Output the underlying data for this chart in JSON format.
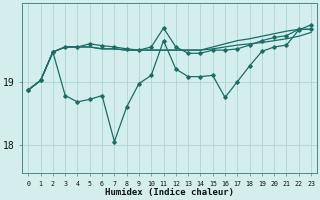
{
  "xlabel": "Humidex (Indice chaleur)",
  "bg_color": "#d4eeed",
  "grid_color": "#afd6d2",
  "line_color": "#1a6e64",
  "x_ticks": [
    0,
    1,
    2,
    3,
    4,
    5,
    6,
    7,
    8,
    9,
    10,
    11,
    12,
    13,
    14,
    15,
    16,
    17,
    18,
    19,
    20,
    21,
    22,
    23
  ],
  "y_ticks": [
    18,
    19
  ],
  "ylim": [
    17.55,
    20.25
  ],
  "xlim": [
    -0.5,
    23.5
  ],
  "series": [
    {
      "y": [
        18.87,
        19.02,
        19.47,
        19.55,
        19.55,
        19.55,
        19.52,
        19.52,
        19.5,
        19.5,
        19.5,
        19.5,
        19.5,
        19.5,
        19.5,
        19.52,
        19.55,
        19.58,
        19.6,
        19.62,
        19.65,
        19.68,
        19.72,
        19.78
      ],
      "marker": false,
      "lw": 0.9
    },
    {
      "y": [
        18.87,
        19.02,
        19.47,
        19.55,
        19.55,
        19.55,
        19.52,
        19.52,
        19.5,
        19.5,
        19.5,
        19.5,
        19.5,
        19.5,
        19.5,
        19.55,
        19.6,
        19.65,
        19.68,
        19.72,
        19.76,
        19.8,
        19.83,
        19.83
      ],
      "marker": false,
      "lw": 0.9
    },
    {
      "y": [
        18.87,
        19.02,
        19.47,
        19.55,
        19.55,
        19.6,
        19.57,
        19.55,
        19.52,
        19.5,
        19.55,
        19.85,
        19.55,
        19.45,
        19.45,
        19.5,
        19.5,
        19.52,
        19.58,
        19.65,
        19.7,
        19.73,
        19.83,
        19.83
      ],
      "marker": true,
      "lw": 0.9
    },
    {
      "y": [
        18.87,
        19.02,
        19.47,
        18.78,
        18.68,
        18.72,
        18.78,
        18.05,
        18.6,
        18.97,
        19.1,
        19.65,
        19.2,
        19.08,
        19.08,
        19.1,
        18.75,
        19.0,
        19.25,
        19.48,
        19.55,
        19.58,
        19.82,
        19.9
      ],
      "marker": true,
      "lw": 0.9
    }
  ]
}
